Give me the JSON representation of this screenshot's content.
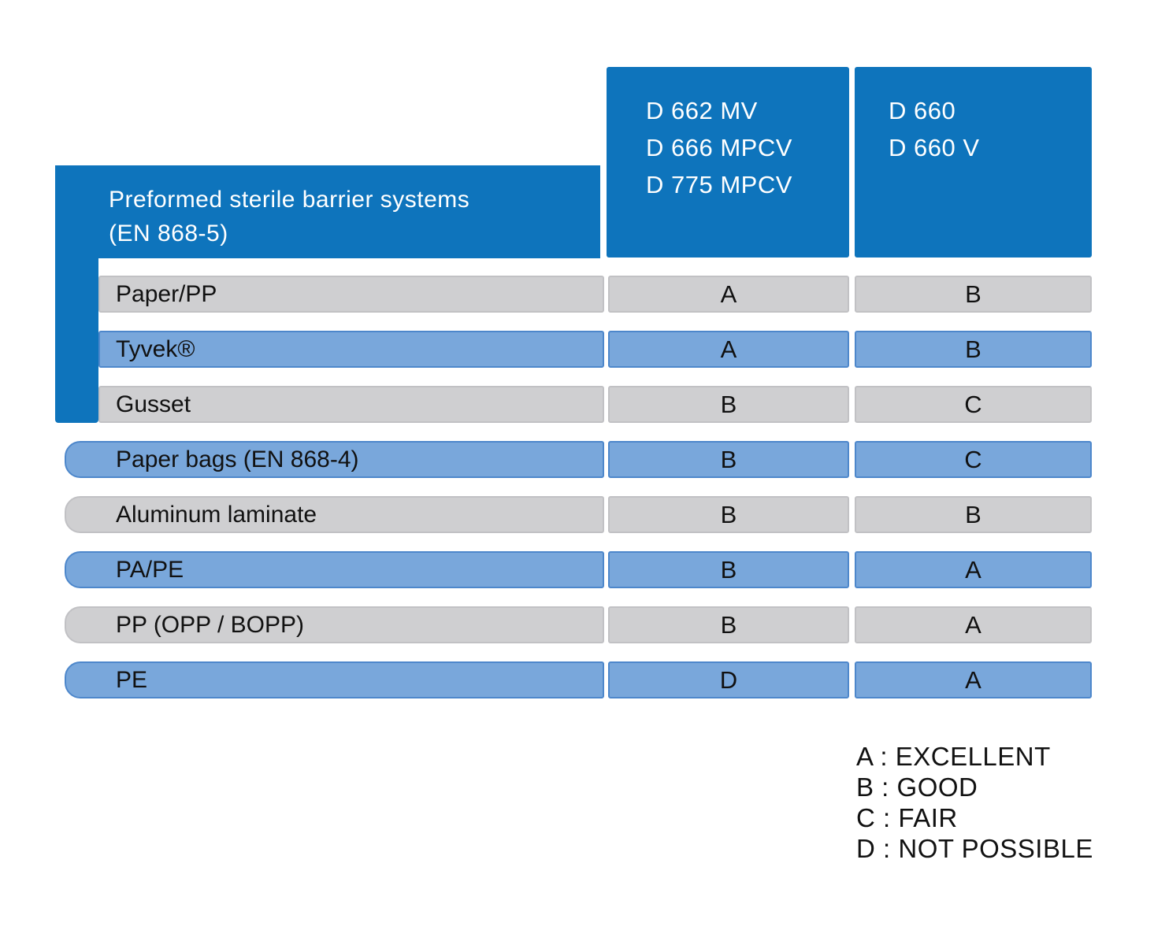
{
  "colors": {
    "header_blue": "#0E74BC",
    "row_blue": "#79A7DB",
    "row_blue_border": "#4D87CB",
    "row_gray": "#CFCFD1",
    "row_gray_border": "#C1C1C4"
  },
  "machine_columns": [
    {
      "lines": [
        "D 662 MV",
        "D 666 MPCV",
        "D 775 MPCV"
      ]
    },
    {
      "lines": [
        "D 660",
        "D 660 V"
      ]
    }
  ],
  "group_header": {
    "line1": "Preformed sterile barrier systems",
    "line2": "(EN 868-5)"
  },
  "rows": [
    {
      "label": "Paper/PP",
      "tone": "gray",
      "grouped": true,
      "ratings": [
        "A",
        "B"
      ]
    },
    {
      "label": "Tyvek®",
      "tone": "blue",
      "grouped": true,
      "ratings": [
        "A",
        "B"
      ]
    },
    {
      "label": "Gusset",
      "tone": "gray",
      "grouped": true,
      "ratings": [
        "B",
        "C"
      ]
    },
    {
      "label": "Paper bags (EN 868-4)",
      "tone": "blue",
      "grouped": false,
      "ratings": [
        "B",
        "C"
      ]
    },
    {
      "label": "Aluminum laminate",
      "tone": "gray",
      "grouped": false,
      "ratings": [
        "B",
        "B"
      ]
    },
    {
      "label": "PA/PE",
      "tone": "blue",
      "grouped": false,
      "ratings": [
        "B",
        "A"
      ]
    },
    {
      "label": "PP (OPP / BOPP)",
      "tone": "gray",
      "grouped": false,
      "ratings": [
        "B",
        "A"
      ]
    },
    {
      "label": "PE",
      "tone": "blue",
      "grouped": false,
      "ratings": [
        "D",
        "A"
      ]
    }
  ],
  "legend": {
    "separator": " : ",
    "items": [
      {
        "key": "A",
        "label": "EXCELLENT"
      },
      {
        "key": "B",
        "label": "GOOD"
      },
      {
        "key": "C",
        "label": "FAIR"
      },
      {
        "key": "D",
        "label": "NOT POSSIBLE"
      }
    ]
  },
  "chart_data": {
    "type": "table",
    "columns": [
      "D 662 MV / D 666 MPCV / D 775 MPCV",
      "D 660 / D 660 V"
    ],
    "row_group": {
      "label": "Preformed sterile barrier systems (EN 868-5)",
      "rows": [
        "Paper/PP",
        "Tyvek®",
        "Gusset"
      ]
    },
    "rows": [
      "Paper/PP",
      "Tyvek®",
      "Gusset",
      "Paper bags (EN 868-4)",
      "Aluminum laminate",
      "PA/PE",
      "PP (OPP / BOPP)",
      "PE"
    ],
    "values": [
      [
        "A",
        "B"
      ],
      [
        "A",
        "B"
      ],
      [
        "B",
        "C"
      ],
      [
        "B",
        "C"
      ],
      [
        "B",
        "B"
      ],
      [
        "B",
        "A"
      ],
      [
        "B",
        "A"
      ],
      [
        "D",
        "A"
      ]
    ],
    "legend": {
      "A": "EXCELLENT",
      "B": "GOOD",
      "C": "FAIR",
      "D": "NOT POSSIBLE"
    }
  }
}
